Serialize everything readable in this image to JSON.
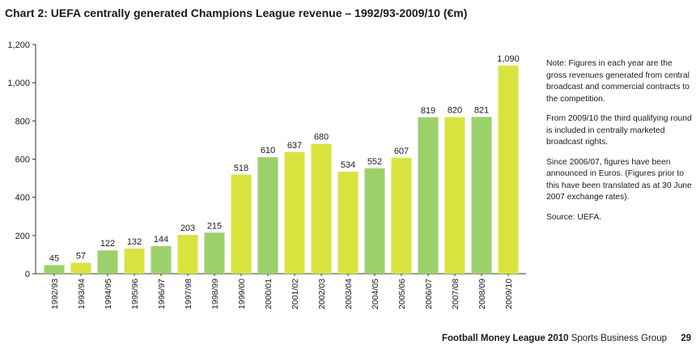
{
  "title": "Chart 2: UEFA centrally generated Champions League revenue – 1992/93-2009/10 (€m)",
  "chart_data": {
    "type": "bar",
    "title": "Chart 2: UEFA centrally generated Champions League revenue – 1992/93-2009/10 (€m)",
    "categories": [
      "1992/93",
      "1993/94",
      "1994/95",
      "1995/96",
      "1996/97",
      "1997/98",
      "1998/99",
      "1999/00",
      "2000/01",
      "2001/02",
      "2002/03",
      "2003/04",
      "2004/05",
      "2005/06",
      "2006/07",
      "2007/08",
      "2008/09",
      "2009/10"
    ],
    "values": [
      45,
      57,
      122,
      132,
      144,
      203,
      215,
      518,
      610,
      637,
      680,
      534,
      552,
      607,
      819,
      820,
      821,
      1090
    ],
    "data_labels": [
      "45",
      "57",
      "122",
      "132",
      "144",
      "203",
      "215",
      "518",
      "610",
      "637",
      "680",
      "534",
      "552",
      "607",
      "819",
      "820",
      "821",
      "1,090"
    ],
    "bar_colors": [
      "#9bd16a",
      "#d9e33e",
      "#9bd16a",
      "#d9e33e",
      "#9bd16a",
      "#d9e33e",
      "#9bd16a",
      "#d9e33e",
      "#9bd16a",
      "#d9e33e",
      "#d9e33e",
      "#d9e33e",
      "#9bd16a",
      "#d9e33e",
      "#9bd16a",
      "#d9e33e",
      "#9bd16a",
      "#d9e33e"
    ],
    "ylim": [
      0,
      1200
    ],
    "yticks": [
      0,
      200,
      400,
      600,
      800,
      1000,
      1200
    ],
    "ytick_labels": [
      "0",
      "200",
      "400",
      "600",
      "800",
      "1,000",
      "1,200"
    ],
    "xlabel": "",
    "ylabel": "",
    "grid": false,
    "legend": "none"
  },
  "colors": {
    "green": "#9bd16a",
    "yellow_green": "#d9e33e",
    "axis": "#333333"
  },
  "notes": [
    "Note: Figures in each year are the gross revenues generated from central broadcast and commercial contracts to the competition.",
    "From 2009/10 the third qualifying round is included in centrally marketed broadcast rights.",
    "Since 2006/07, figures have been announced in Euros. (Figures prior to this have been translated as at 30 June 2007 exchange rates).",
    "Source: UEFA."
  ],
  "footer": {
    "publication": "Football Money League 2010",
    "group": "Sports Business Group",
    "page": "29"
  }
}
